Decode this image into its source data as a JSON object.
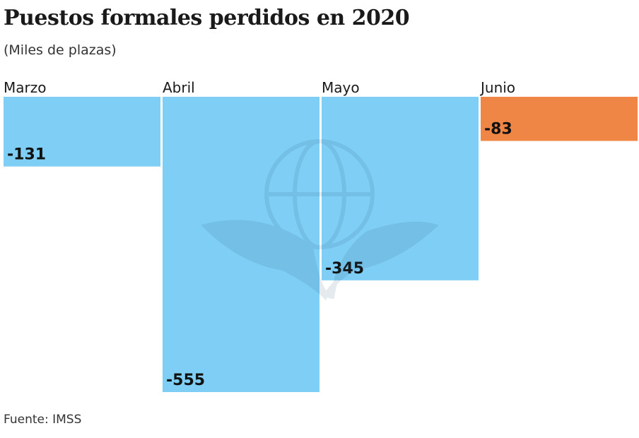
{
  "title": "Puestos formales perdidos en 2020",
  "subtitle": "(Miles de plazas)",
  "source": "Fuente: IMSS",
  "chart_data": {
    "type": "bar",
    "orientation": "vertical-downward",
    "categories": [
      "Marzo",
      "Abril",
      "Mayo",
      "Junio"
    ],
    "values": [
      -131,
      -555,
      -345,
      -83
    ],
    "value_labels": [
      "-131",
      "-555",
      "-345",
      "-83"
    ],
    "colors": [
      "#7fcef5",
      "#7fcef5",
      "#7fcef5",
      "#f08645"
    ],
    "title": "Puestos formales perdidos en 2020",
    "ylabel": "",
    "xlabel": "",
    "ylim": [
      -555,
      0
    ],
    "grid": false,
    "watermark": "IMSS eagle-globe logo"
  }
}
